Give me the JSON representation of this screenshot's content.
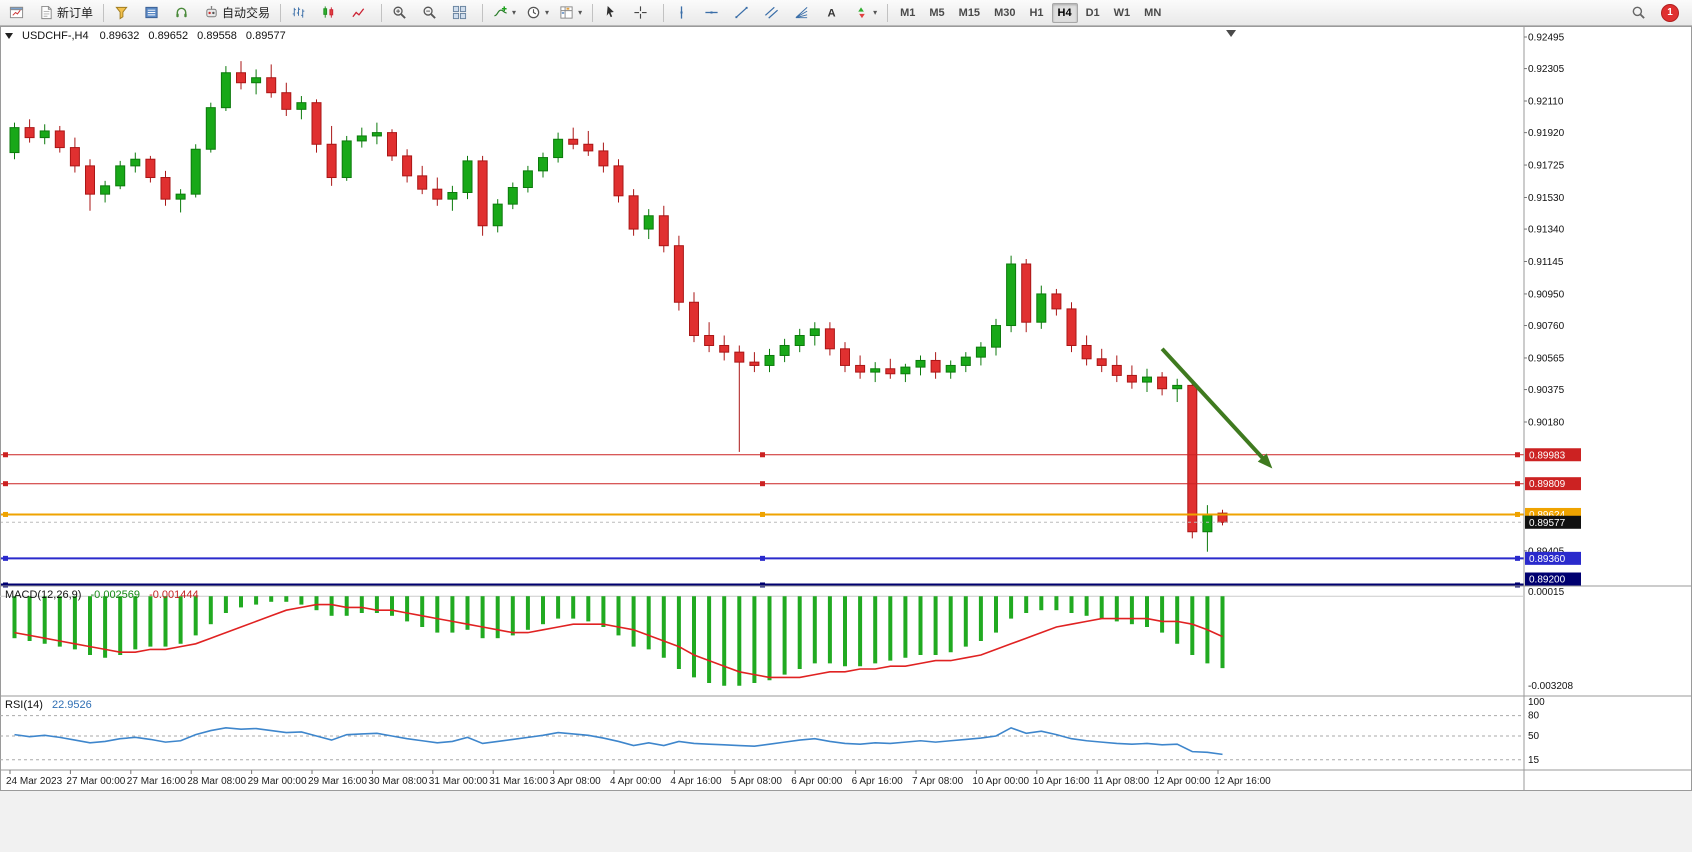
{
  "info_bar": {
    "symbol_period": "USDCHF-,H4",
    "open": "0.89632",
    "high": "0.89652",
    "low": "0.89558",
    "close": "0.89577"
  },
  "toolbar": {
    "groups": [
      [
        {
          "name": "new-chart-button",
          "icon": "chart-new"
        },
        {
          "name": "new-order-button",
          "icon": "new-order",
          "label": "新订单"
        }
      ],
      [
        {
          "name": "market-watch-button",
          "icon": "funnel"
        },
        {
          "name": "data-window-button",
          "icon": "data-window"
        },
        {
          "name": "sound-alerts-button",
          "icon": "headset"
        },
        {
          "name": "autotrading-button",
          "icon": "autotrade",
          "label": "自动交易"
        }
      ],
      [
        {
          "name": "bar-chart-button",
          "icon": "bars"
        },
        {
          "name": "candlestick-chart-button",
          "icon": "candles"
        },
        {
          "name": "line-chart-button",
          "icon": "line-chart"
        }
      ],
      [
        {
          "name": "zoom-in-button",
          "icon": "zoom-in"
        },
        {
          "name": "zoom-out-button",
          "icon": "zoom-out"
        },
        {
          "name": "tile-windows-button",
          "icon": "tile"
        }
      ],
      [
        {
          "name": "indicators-button",
          "icon": "indicators",
          "dropdown": true
        },
        {
          "name": "periods-button",
          "icon": "clock",
          "dropdown": true
        },
        {
          "name": "templates-button",
          "icon": "template",
          "dropdown": true
        }
      ],
      [
        {
          "name": "cursor-button",
          "icon": "cursor"
        },
        {
          "name": "crosshair-button",
          "icon": "crosshair"
        }
      ],
      [
        {
          "name": "vertical-line-button",
          "icon": "vline"
        },
        {
          "name": "horizontal-line-button",
          "icon": "hline"
        },
        {
          "name": "trendline-button",
          "icon": "trendline"
        },
        {
          "name": "channel-button",
          "icon": "channel"
        },
        {
          "name": "fibonacci-button",
          "icon": "fibo"
        },
        {
          "name": "text-button",
          "icon": "text"
        },
        {
          "name": "arrows-button",
          "icon": "arrows",
          "dropdown": true
        }
      ]
    ],
    "timeframes": {
      "items": [
        "M1",
        "M5",
        "M15",
        "M30",
        "H1",
        "H4",
        "D1",
        "W1",
        "MN"
      ],
      "active": "H4"
    },
    "notification_count": "1"
  },
  "panels": {
    "macd": {
      "name": "MACD(12,26,9)",
      "value_main": "-0.002569",
      "value_signal": "-0.001444"
    },
    "rsi": {
      "name": "RSI(14)",
      "value": "22.9526"
    }
  },
  "chart_data": [
    {
      "type": "candlestick",
      "title": "USDCHF-,H4",
      "bars_per_label": 4,
      "ylim": [
        0.8916,
        0.92525
      ],
      "x_labels": [
        "24 Mar 2023",
        "27 Mar 00:00",
        "27 Mar 16:00",
        "28 Mar 08:00",
        "29 Mar 00:00",
        "29 Mar 16:00",
        "30 Mar 08:00",
        "31 Mar 00:00",
        "31 Mar 16:00",
        "3 Apr 08:00",
        "4 Apr 00:00",
        "4 Apr 16:00",
        "5 Apr 08:00",
        "6 Apr 00:00",
        "6 Apr 16:00",
        "7 Apr 08:00",
        "10 Apr 00:00",
        "10 Apr 16:00",
        "11 Apr 08:00",
        "12 Apr 00:00",
        "12 Apr 16:00"
      ],
      "y_axis_labels": [
        "0.92495",
        "0.92305",
        "0.92110",
        "0.91920",
        "0.91725",
        "0.91530",
        "0.91340",
        "0.91145",
        "0.90950",
        "0.90760",
        "0.90565",
        "0.90375",
        "0.90180",
        "0.89405"
      ],
      "colors": {
        "up": "#18a818",
        "up_border": "#0c7a0c",
        "down": "#e03030",
        "down_border": "#aa1616"
      },
      "candles": [
        [
          0.918,
          0.9198,
          0.9176,
          0.9195
        ],
        [
          0.9195,
          0.92,
          0.9186,
          0.9189
        ],
        [
          0.9189,
          0.9197,
          0.9185,
          0.9193
        ],
        [
          0.9193,
          0.9196,
          0.918,
          0.9183
        ],
        [
          0.9183,
          0.9189,
          0.9168,
          0.9172
        ],
        [
          0.9172,
          0.9176,
          0.9145,
          0.9155
        ],
        [
          0.9155,
          0.9163,
          0.915,
          0.916
        ],
        [
          0.916,
          0.9175,
          0.9158,
          0.9172
        ],
        [
          0.9172,
          0.918,
          0.9168,
          0.9176
        ],
        [
          0.9176,
          0.9178,
          0.9162,
          0.9165
        ],
        [
          0.9165,
          0.9169,
          0.9148,
          0.9152
        ],
        [
          0.9152,
          0.9158,
          0.9144,
          0.9155
        ],
        [
          0.9155,
          0.9185,
          0.9153,
          0.9182
        ],
        [
          0.9182,
          0.921,
          0.918,
          0.9207
        ],
        [
          0.9207,
          0.9232,
          0.9205,
          0.9228
        ],
        [
          0.9228,
          0.9235,
          0.9218,
          0.9222
        ],
        [
          0.9222,
          0.923,
          0.9215,
          0.9225
        ],
        [
          0.9225,
          0.9233,
          0.9213,
          0.9216
        ],
        [
          0.9216,
          0.9222,
          0.9202,
          0.9206
        ],
        [
          0.9206,
          0.9214,
          0.92,
          0.921
        ],
        [
          0.921,
          0.9212,
          0.918,
          0.9185
        ],
        [
          0.9185,
          0.9196,
          0.916,
          0.9165
        ],
        [
          0.9165,
          0.919,
          0.9163,
          0.9187
        ],
        [
          0.9187,
          0.9195,
          0.9183,
          0.919
        ],
        [
          0.919,
          0.9198,
          0.9185,
          0.9192
        ],
        [
          0.9192,
          0.9194,
          0.9175,
          0.9178
        ],
        [
          0.9178,
          0.9182,
          0.9162,
          0.9166
        ],
        [
          0.9166,
          0.9172,
          0.9155,
          0.9158
        ],
        [
          0.9158,
          0.9165,
          0.9148,
          0.9152
        ],
        [
          0.9152,
          0.916,
          0.9145,
          0.9156
        ],
        [
          0.9156,
          0.9178,
          0.9152,
          0.9175
        ],
        [
          0.9175,
          0.9178,
          0.913,
          0.9136
        ],
        [
          0.9136,
          0.9152,
          0.9132,
          0.9149
        ],
        [
          0.9149,
          0.9162,
          0.9146,
          0.9159
        ],
        [
          0.9159,
          0.9172,
          0.9156,
          0.9169
        ],
        [
          0.9169,
          0.918,
          0.9165,
          0.9177
        ],
        [
          0.9177,
          0.9192,
          0.9174,
          0.9188
        ],
        [
          0.9188,
          0.9195,
          0.9182,
          0.9185
        ],
        [
          0.9185,
          0.9193,
          0.9178,
          0.9181
        ],
        [
          0.9181,
          0.9186,
          0.9168,
          0.9172
        ],
        [
          0.9172,
          0.9176,
          0.915,
          0.9154
        ],
        [
          0.9154,
          0.9158,
          0.913,
          0.9134
        ],
        [
          0.9134,
          0.9146,
          0.9128,
          0.9142
        ],
        [
          0.9142,
          0.9148,
          0.912,
          0.9124
        ],
        [
          0.9124,
          0.913,
          0.9085,
          0.909
        ],
        [
          0.909,
          0.9096,
          0.9066,
          0.907
        ],
        [
          0.907,
          0.9078,
          0.906,
          0.9064
        ],
        [
          0.9064,
          0.907,
          0.9055,
          0.906
        ],
        [
          0.906,
          0.9064,
          0.9,
          0.9054
        ],
        [
          0.9054,
          0.906,
          0.9048,
          0.9052
        ],
        [
          0.9052,
          0.9062,
          0.9048,
          0.9058
        ],
        [
          0.9058,
          0.9068,
          0.9054,
          0.9064
        ],
        [
          0.9064,
          0.9074,
          0.906,
          0.907
        ],
        [
          0.907,
          0.9078,
          0.9064,
          0.9074
        ],
        [
          0.9074,
          0.9078,
          0.9058,
          0.9062
        ],
        [
          0.9062,
          0.9066,
          0.9048,
          0.9052
        ],
        [
          0.9052,
          0.9058,
          0.9044,
          0.9048
        ],
        [
          0.9048,
          0.9054,
          0.9042,
          0.905
        ],
        [
          0.905,
          0.9056,
          0.9044,
          0.9047
        ],
        [
          0.9047,
          0.9053,
          0.9042,
          0.9051
        ],
        [
          0.9051,
          0.9058,
          0.9046,
          0.9055
        ],
        [
          0.9055,
          0.906,
          0.9044,
          0.9048
        ],
        [
          0.9048,
          0.9055,
          0.9044,
          0.9052
        ],
        [
          0.9052,
          0.906,
          0.9048,
          0.9057
        ],
        [
          0.9057,
          0.9066,
          0.9052,
          0.9063
        ],
        [
          0.9063,
          0.908,
          0.9058,
          0.9076
        ],
        [
          0.9076,
          0.9118,
          0.9072,
          0.9113
        ],
        [
          0.9113,
          0.9116,
          0.9072,
          0.9078
        ],
        [
          0.9078,
          0.91,
          0.9074,
          0.9095
        ],
        [
          0.9095,
          0.9098,
          0.9082,
          0.9086
        ],
        [
          0.9086,
          0.909,
          0.906,
          0.9064
        ],
        [
          0.9064,
          0.907,
          0.9052,
          0.9056
        ],
        [
          0.9056,
          0.9062,
          0.9048,
          0.9052
        ],
        [
          0.9052,
          0.9058,
          0.9042,
          0.9046
        ],
        [
          0.9046,
          0.9052,
          0.9038,
          0.9042
        ],
        [
          0.9042,
          0.905,
          0.9036,
          0.9045
        ],
        [
          0.9045,
          0.9048,
          0.9034,
          0.9038
        ],
        [
          0.9038,
          0.9044,
          0.903,
          0.904
        ],
        [
          0.904,
          0.9042,
          0.8948,
          0.8952
        ],
        [
          0.8952,
          0.8968,
          0.894,
          0.8962
        ],
        [
          0.89632,
          0.89652,
          0.89558,
          0.89577
        ]
      ],
      "lines": [
        {
          "name": "resistance-line-1",
          "label": "0.89983",
          "price": 0.89983,
          "color": "#cc2222",
          "width": 1
        },
        {
          "name": "resistance-line-2",
          "label": "0.89809",
          "price": 0.89809,
          "color": "#cc2222",
          "width": 1
        },
        {
          "name": "support-line-orange",
          "label": "0.89624",
          "price": 0.89624,
          "color": "#efa300",
          "width": 2
        },
        {
          "name": "support-line-blue",
          "label": "0.89360",
          "price": 0.8936,
          "color": "#2a2acc",
          "width": 2
        },
        {
          "name": "support-line-navy",
          "label": "0.89200",
          "price": 0.892,
          "color": "#000070",
          "width": 3
        }
      ],
      "current_price": {
        "label": "0.89577",
        "price": 0.89577,
        "color": "#111111"
      },
      "arrow_annotation": {
        "from_bar": 76.3,
        "from_price": 0.9062,
        "to_bar": 83.6,
        "to_price": 0.899,
        "color": "#3f7a1f"
      },
      "shift_marker_bar": 80.6
    },
    {
      "type": "macd",
      "name": "MACD(12,26,9)",
      "params": [
        12,
        26,
        9
      ],
      "current": {
        "macd": -0.002569,
        "signal": -0.001444
      },
      "ylim": [
        -0.003208,
        0.00015
      ],
      "y_axis_labels": [
        "0.00015",
        "-0.003208"
      ],
      "colors": {
        "histogram": "#21aa21",
        "signal": "#e02222"
      },
      "histogram": [
        -0.0015,
        -0.0016,
        -0.0017,
        -0.0018,
        -0.0019,
        -0.0021,
        -0.0022,
        -0.0021,
        -0.0019,
        -0.0018,
        -0.0018,
        -0.0017,
        -0.0014,
        -0.001,
        -0.0006,
        -0.0004,
        -0.0003,
        -0.0002,
        -0.0002,
        -0.0003,
        -0.0005,
        -0.0007,
        -0.0007,
        -0.0006,
        -0.0006,
        -0.0007,
        -0.0009,
        -0.0011,
        -0.0013,
        -0.0013,
        -0.0012,
        -0.0015,
        -0.0015,
        -0.0014,
        -0.0012,
        -0.001,
        -0.0008,
        -0.0008,
        -0.0009,
        -0.0011,
        -0.0014,
        -0.0018,
        -0.0019,
        -0.0022,
        -0.0026,
        -0.0029,
        -0.0031,
        -0.0032,
        -0.0032,
        -0.0031,
        -0.003,
        -0.0028,
        -0.0026,
        -0.0024,
        -0.0024,
        -0.0025,
        -0.0025,
        -0.0024,
        -0.0023,
        -0.0022,
        -0.0021,
        -0.0021,
        -0.002,
        -0.0018,
        -0.0016,
        -0.0013,
        -0.0008,
        -0.0006,
        -0.0005,
        -0.0005,
        -0.0006,
        -0.0007,
        -0.0008,
        -0.0009,
        -0.001,
        -0.0011,
        -0.0013,
        -0.0017,
        -0.0021,
        -0.0024,
        -0.002569
      ],
      "signal": [
        -0.0013,
        -0.0014,
        -0.0015,
        -0.0016,
        -0.0017,
        -0.0018,
        -0.0019,
        -0.002,
        -0.002,
        -0.0019,
        -0.0019,
        -0.0018,
        -0.0017,
        -0.0015,
        -0.0013,
        -0.0011,
        -0.0009,
        -0.0007,
        -0.0005,
        -0.0004,
        -0.0003,
        -0.0003,
        -0.0004,
        -0.0004,
        -0.0005,
        -0.0005,
        -0.0006,
        -0.0007,
        -0.0008,
        -0.0009,
        -0.001,
        -0.0011,
        -0.0012,
        -0.0013,
        -0.0013,
        -0.0012,
        -0.0011,
        -0.001,
        -0.001,
        -0.001,
        -0.0011,
        -0.0012,
        -0.0014,
        -0.0016,
        -0.0018,
        -0.0021,
        -0.0023,
        -0.0025,
        -0.0027,
        -0.0028,
        -0.0029,
        -0.0029,
        -0.0029,
        -0.0028,
        -0.0027,
        -0.0027,
        -0.0026,
        -0.0026,
        -0.0025,
        -0.0025,
        -0.0024,
        -0.0023,
        -0.0023,
        -0.0022,
        -0.0021,
        -0.0019,
        -0.0017,
        -0.0015,
        -0.0013,
        -0.0011,
        -0.001,
        -0.0009,
        -0.0008,
        -0.0008,
        -0.0008,
        -0.0008,
        -0.0009,
        -0.0009,
        -0.001,
        -0.0012,
        -0.001444
      ]
    },
    {
      "type": "rsi",
      "name": "RSI(14)",
      "period": 14,
      "current": 22.9526,
      "ylim": [
        0,
        100
      ],
      "levels": [
        80,
        50,
        15
      ],
      "y_axis_labels": [
        "100",
        "80",
        "50",
        "15"
      ],
      "color": "#3e86cc",
      "values": [
        52,
        49,
        51,
        48,
        44,
        40,
        42,
        46,
        48,
        45,
        41,
        43,
        52,
        58,
        62,
        60,
        61,
        58,
        55,
        56,
        50,
        44,
        52,
        53,
        54,
        50,
        46,
        43,
        40,
        42,
        48,
        39,
        42,
        45,
        48,
        51,
        55,
        53,
        51,
        47,
        42,
        36,
        40,
        36,
        42,
        39,
        38,
        37,
        36,
        35,
        38,
        41,
        44,
        46,
        42,
        39,
        38,
        40,
        39,
        41,
        43,
        41,
        43,
        45,
        47,
        50,
        62,
        54,
        57,
        52,
        46,
        43,
        41,
        39,
        38,
        39,
        37,
        38,
        27,
        26,
        22.95
      ]
    }
  ]
}
